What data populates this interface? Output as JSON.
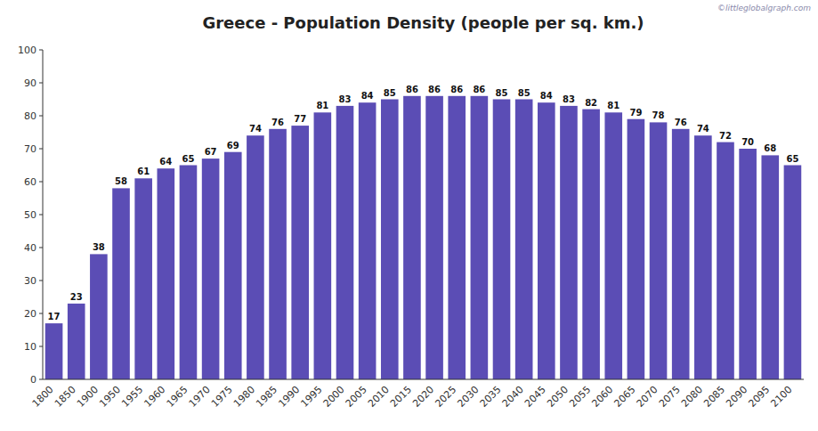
{
  "chart_data": {
    "type": "bar",
    "title": "Greece - Population Density (people per sq. km.)",
    "categories": [
      "1800",
      "1850",
      "1900",
      "1950",
      "1955",
      "1960",
      "1965",
      "1970",
      "1975",
      "1980",
      "1985",
      "1990",
      "1995",
      "2000",
      "2005",
      "2010",
      "2015",
      "2020",
      "2025",
      "2030",
      "2035",
      "2040",
      "2045",
      "2050",
      "2055",
      "2060",
      "2065",
      "2070",
      "2075",
      "2080",
      "2085",
      "2090",
      "2095",
      "2100"
    ],
    "values": [
      17,
      23,
      38,
      58,
      61,
      64,
      65,
      67,
      69,
      74,
      76,
      77,
      81,
      83,
      84,
      85,
      86,
      86,
      86,
      86,
      85,
      85,
      84,
      83,
      82,
      81,
      79,
      78,
      76,
      74,
      72,
      70,
      68,
      65
    ],
    "color": "#5b4db5",
    "ylim": [
      0,
      100
    ],
    "yticks": [
      0,
      10,
      20,
      30,
      40,
      50,
      60,
      70,
      80,
      90,
      100
    ],
    "grid": false,
    "data_labels": true,
    "annotations": [
      "©littleglobalgraph.com"
    ]
  }
}
